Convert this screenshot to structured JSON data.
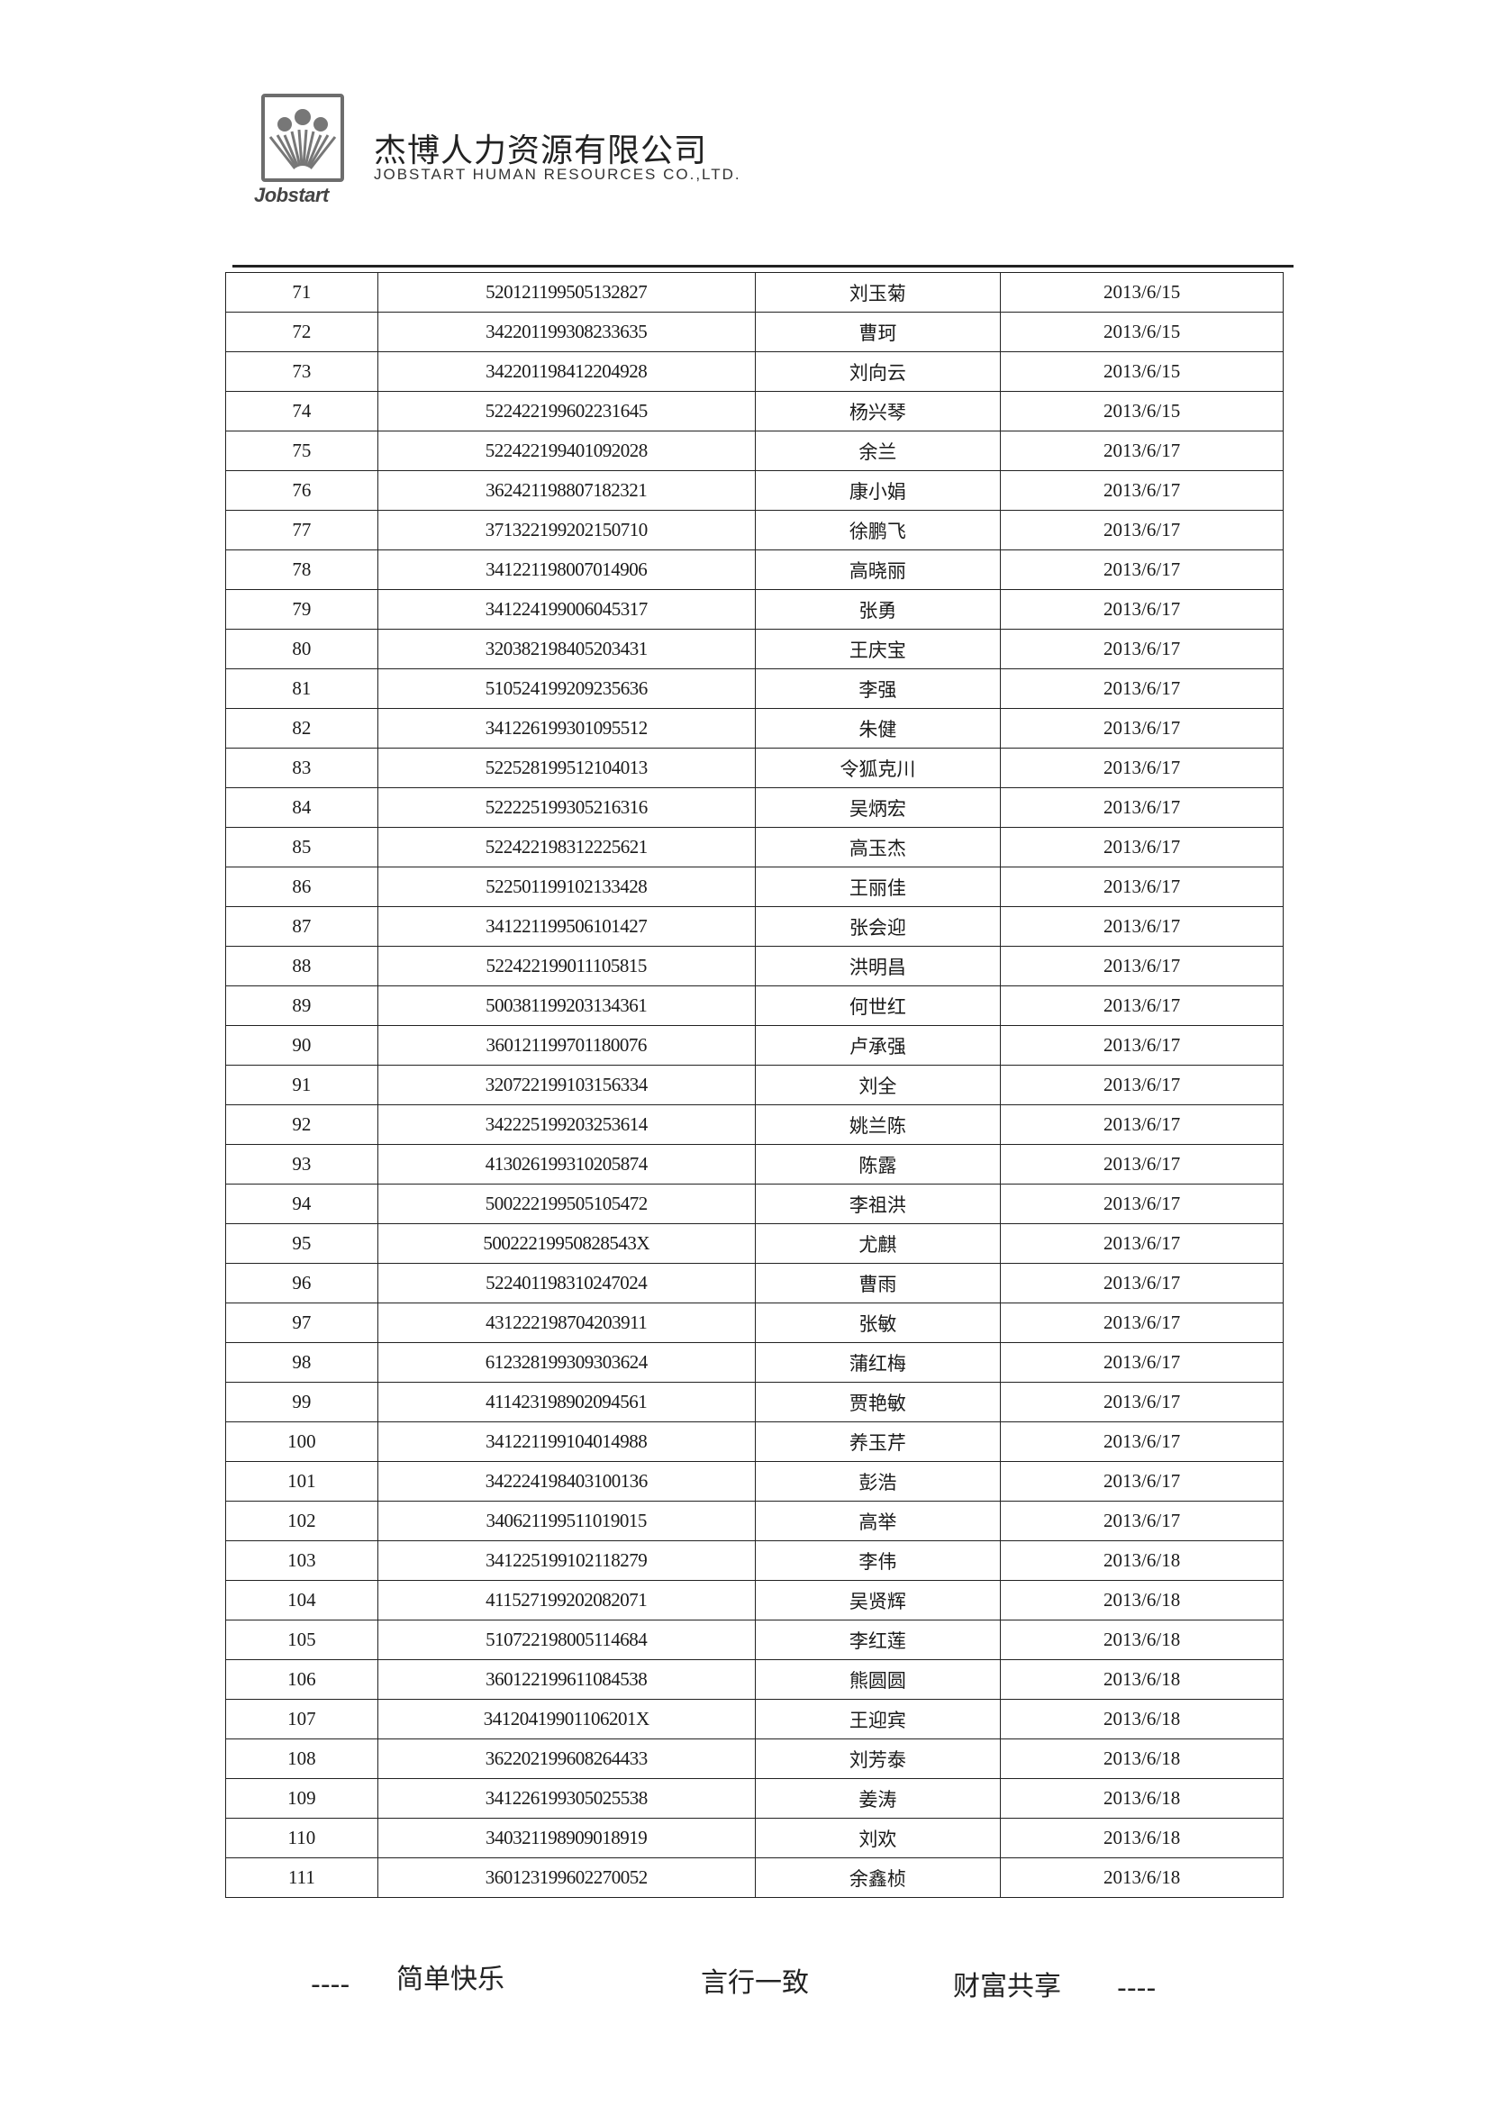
{
  "header": {
    "logo_text": "Jobstart",
    "company_cn": "杰博人力资源有限公司",
    "company_en": "JOBSTART HUMAN RESOURCES CO.,LTD."
  },
  "table": {
    "rows": [
      [
        "71",
        "520121199505132827",
        "刘玉菊",
        "2013/6/15"
      ],
      [
        "72",
        "342201199308233635",
        "曹珂",
        "2013/6/15"
      ],
      [
        "73",
        "342201198412204928",
        "刘向云",
        "2013/6/15"
      ],
      [
        "74",
        "522422199602231645",
        "杨兴琴",
        "2013/6/15"
      ],
      [
        "75",
        "522422199401092028",
        "余兰",
        "2013/6/17"
      ],
      [
        "76",
        "362421198807182321",
        "康小娟",
        "2013/6/17"
      ],
      [
        "77",
        "371322199202150710",
        "徐鹏飞",
        "2013/6/17"
      ],
      [
        "78",
        "341221198007014906",
        "高晓丽",
        "2013/6/17"
      ],
      [
        "79",
        "341224199006045317",
        "张勇",
        "2013/6/17"
      ],
      [
        "80",
        "320382198405203431",
        "王庆宝",
        "2013/6/17"
      ],
      [
        "81",
        "510524199209235636",
        "李强",
        "2013/6/17"
      ],
      [
        "82",
        "341226199301095512",
        "朱健",
        "2013/6/17"
      ],
      [
        "83",
        "522528199512104013",
        "令狐克川",
        "2013/6/17"
      ],
      [
        "84",
        "522225199305216316",
        "吴炳宏",
        "2013/6/17"
      ],
      [
        "85",
        "522422198312225621",
        "高玉杰",
        "2013/6/17"
      ],
      [
        "86",
        "522501199102133428",
        "王丽佳",
        "2013/6/17"
      ],
      [
        "87",
        "341221199506101427",
        "张会迎",
        "2013/6/17"
      ],
      [
        "88",
        "522422199011105815",
        "洪明昌",
        "2013/6/17"
      ],
      [
        "89",
        "500381199203134361",
        "何世红",
        "2013/6/17"
      ],
      [
        "90",
        "360121199701180076",
        "卢承强",
        "2013/6/17"
      ],
      [
        "91",
        "320722199103156334",
        "刘全",
        "2013/6/17"
      ],
      [
        "92",
        "342225199203253614",
        "姚兰陈",
        "2013/6/17"
      ],
      [
        "93",
        "413026199310205874",
        "陈露",
        "2013/6/17"
      ],
      [
        "94",
        "500222199505105472",
        "李祖洪",
        "2013/6/17"
      ],
      [
        "95",
        "50022219950828543X",
        "尤麒",
        "2013/6/17"
      ],
      [
        "96",
        "522401198310247024",
        "曹雨",
        "2013/6/17"
      ],
      [
        "97",
        "431222198704203911",
        "张敏",
        "2013/6/17"
      ],
      [
        "98",
        "612328199309303624",
        "蒲红梅",
        "2013/6/17"
      ],
      [
        "99",
        "411423198902094561",
        "贾艳敏",
        "2013/6/17"
      ],
      [
        "100",
        "341221199104014988",
        "养玉芹",
        "2013/6/17"
      ],
      [
        "101",
        "342224198403100136",
        "彭浩",
        "2013/6/17"
      ],
      [
        "102",
        "340621199511019015",
        "高举",
        "2013/6/17"
      ],
      [
        "103",
        "341225199102118279",
        "李伟",
        "2013/6/18"
      ],
      [
        "104",
        "411527199202082071",
        "吴贤辉",
        "2013/6/18"
      ],
      [
        "105",
        "510722198005114684",
        "李红莲",
        "2013/6/18"
      ],
      [
        "106",
        "360122199611084538",
        "熊圆圆",
        "2013/6/18"
      ],
      [
        "107",
        "34120419901106201X",
        "王迎宾",
        "2013/6/18"
      ],
      [
        "108",
        "362202199608264433",
        "刘芳泰",
        "2013/6/18"
      ],
      [
        "109",
        "341226199305025538",
        "姜涛",
        "2013/6/18"
      ],
      [
        "110",
        "340321198909018919",
        "刘欢",
        "2013/6/18"
      ],
      [
        "111",
        "360123199602270052",
        "余鑫桢",
        "2013/6/18"
      ]
    ]
  },
  "footer": {
    "dash_left": "----",
    "motto_1": "简单快乐",
    "motto_2": "言行一致",
    "motto_3": "财富共享",
    "dash_right": "----"
  }
}
